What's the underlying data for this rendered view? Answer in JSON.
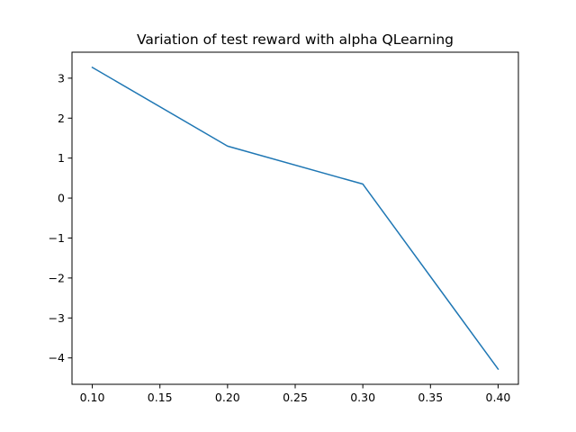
{
  "chart_data": {
    "type": "line",
    "title": "Variation of test reward with alpha QLearning",
    "xlabel": "",
    "ylabel": "",
    "x": [
      0.1,
      0.2,
      0.3,
      0.4
    ],
    "series": [
      {
        "values": [
          3.27,
          1.3,
          0.35,
          -4.28
        ],
        "color": "#1f77b4"
      }
    ],
    "xlim": [
      0.085,
      0.415
    ],
    "ylim": [
      -4.66,
      3.65
    ],
    "x_ticks": [
      0.1,
      0.15,
      0.2,
      0.25,
      0.3,
      0.35,
      0.4
    ],
    "x_tick_labels": [
      "0.10",
      "0.15",
      "0.20",
      "0.25",
      "0.30",
      "0.35",
      "0.40"
    ],
    "y_ticks": [
      -4,
      -3,
      -2,
      -1,
      0,
      1,
      2,
      3
    ],
    "y_tick_labels": [
      "−4",
      "−3",
      "−2",
      "−1",
      "0",
      "1",
      "2",
      "3"
    ],
    "grid": false,
    "legend": "none"
  }
}
